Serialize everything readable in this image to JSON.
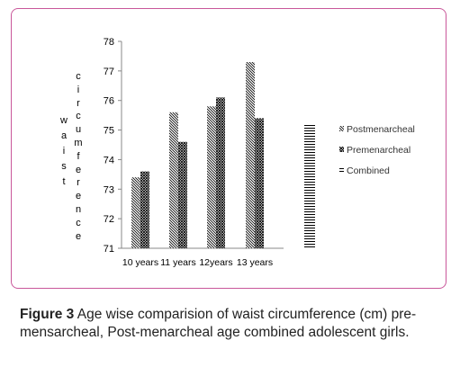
{
  "chart_data": {
    "type": "bar",
    "categories": [
      "10 years",
      "11 years",
      "12years",
      "13 years"
    ],
    "series": [
      {
        "name": "Postmenarcheal",
        "values": [
          73.4,
          75.6,
          75.8,
          77.3
        ],
        "pattern": "backslash"
      },
      {
        "name": "Premenarcheal",
        "values": [
          73.6,
          74.6,
          76.1,
          75.4
        ],
        "pattern": "crosshatch"
      },
      {
        "name": "Combined",
        "values": [
          null,
          null,
          null,
          75.2
        ],
        "pattern": "horizontal"
      }
    ],
    "ylim": [
      71,
      78
    ],
    "yticks": [
      71,
      72,
      73,
      74,
      75,
      76,
      77,
      78
    ],
    "ylabel_word1": "waist",
    "ylabel_word2": "circumference",
    "legend_position": "right",
    "grid": false
  },
  "caption": {
    "label": "Figure 3",
    "text": "Age wise comparision of waist circumference (cm) pre-mensarcheal, Post-menarcheal age combined adolescent girls."
  },
  "colors": {
    "frame": "#c9579a",
    "bars": "#000000",
    "axis": "#888888"
  }
}
